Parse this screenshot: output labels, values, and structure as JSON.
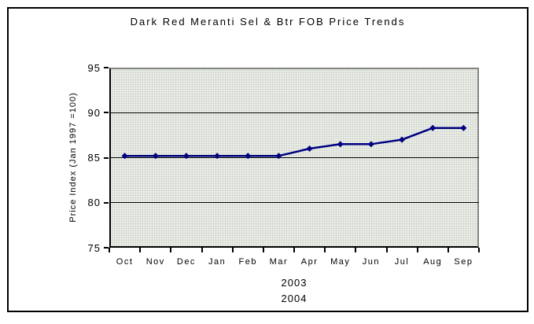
{
  "chart_data": {
    "type": "line",
    "title": "Dark Red Meranti Sel & Btr FOB Price Trends",
    "ylabel": "Price Index (Jan 1997 =100)",
    "categories": [
      "Oct",
      "Nov",
      "Dec",
      "Jan",
      "Feb",
      "Mar",
      "Apr",
      "May",
      "Jun",
      "Jul",
      "Aug",
      "Sep"
    ],
    "values": [
      85.2,
      85.2,
      85.2,
      85.2,
      85.2,
      85.2,
      86.0,
      86.5,
      86.5,
      87.0,
      88.3,
      88.3
    ],
    "y_ticks": [
      95,
      90,
      85,
      80,
      75
    ],
    "ylim": [
      75,
      95
    ],
    "x_group_labels": [
      "2003",
      "2004"
    ],
    "grid": true,
    "legend": false,
    "marker": "diamond",
    "colors": {
      "line": "#000080",
      "plot_background": "#ECEEE8",
      "gridline": "#000000",
      "plot_shadow_border": "#848484",
      "outer_border": "#000000"
    }
  }
}
